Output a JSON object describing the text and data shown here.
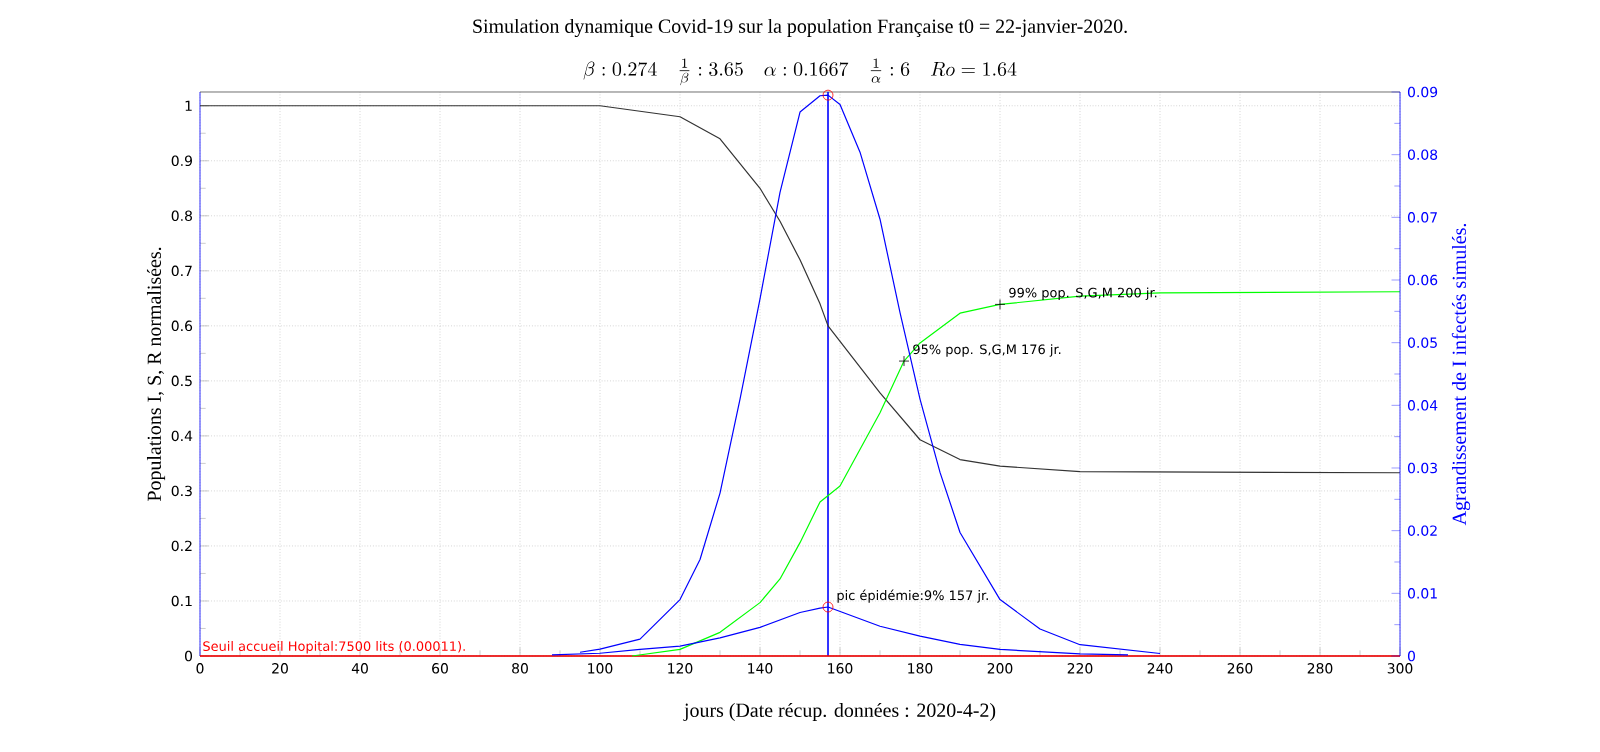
{
  "chart_data": {
    "type": "line",
    "title": "Simulation dynamique Covid-19 sur la population Française t0 = 22-janvier-2020.",
    "subtitle": "\\beta : 0.274 \\quad \\frac{1}{\\beta} : 3.65 \\quad \\alpha : 0.1667 \\quad \\frac{1}{\\alpha} : 6 \\quad Ro = 1.64",
    "xlabel": "jours     (Date récup. données : 2020-4-2)",
    "ylabel": "Populations I, S, R normalisées.",
    "y2label": "Agrandissement de I infectés simulés.",
    "xlim": [
      0,
      300
    ],
    "xticks": [
      0,
      20,
      40,
      60,
      80,
      100,
      120,
      140,
      160,
      180,
      200,
      220,
      240,
      260,
      280,
      300
    ],
    "ylim": [
      0,
      1.025
    ],
    "yticks": [
      0,
      0.1,
      0.2,
      0.3,
      0.4,
      0.5,
      0.6,
      0.7,
      0.8,
      0.9,
      1
    ],
    "y2lim": [
      0,
      0.09
    ],
    "y2ticks": [
      0,
      0.01,
      0.02,
      0.03,
      0.04,
      0.05,
      0.06,
      0.07,
      0.08,
      0.09
    ],
    "grid": true,
    "series": [
      {
        "color": "#333333",
        "x": [
          0,
          100,
          110,
          120,
          130,
          140,
          145,
          150,
          155,
          157,
          170,
          180,
          190,
          200,
          220,
          300
        ],
        "values": [
          1,
          1,
          0.99,
          0.98,
          0.94,
          0.85,
          0.79,
          0.72,
          0.64,
          0.6,
          0.478,
          0.393,
          0.357,
          0.345,
          0.335,
          0.333
        ]
      },
      {
        "color": "#00ff00",
        "x": [
          108,
          120,
          130,
          140,
          145,
          150,
          155,
          160,
          170,
          176,
          180,
          190,
          200,
          220,
          240,
          300
        ],
        "values": [
          0,
          0.012,
          0.043,
          0.097,
          0.14,
          0.206,
          0.28,
          0.309,
          0.442,
          0.536,
          0.569,
          0.623,
          0.639,
          0.654,
          0.66,
          0.662
        ]
      },
      {
        "color": "#0000ff",
        "x": [
          88,
          100,
          110,
          120,
          130,
          140,
          150,
          155,
          157,
          170,
          180,
          190,
          200,
          220,
          232
        ],
        "values": [
          0.002,
          0.005,
          0.012,
          0.018,
          0.033,
          0.052,
          0.079,
          0.087,
          0.089,
          0.054,
          0.036,
          0.021,
          0.012,
          0.004,
          0.002
        ]
      },
      {
        "color": "#0000ff",
        "axis": "y2",
        "x": [
          95,
          100,
          110,
          120,
          125,
          130,
          135,
          140,
          145,
          150,
          155,
          157,
          160,
          165,
          170,
          175,
          180,
          185,
          190,
          200,
          210,
          220,
          240
        ],
        "values": [
          0.0006,
          0.0011,
          0.0027,
          0.009,
          0.0154,
          0.026,
          0.041,
          0.057,
          0.074,
          0.0868,
          0.0894,
          0.0895,
          0.088,
          0.0804,
          0.0697,
          0.0548,
          0.041,
          0.0293,
          0.0197,
          0.009,
          0.0043,
          0.0018,
          0.0004
        ]
      },
      {
        "type": "scatter",
        "marker": "circle",
        "color": "#ff0000",
        "x": [
          157
        ],
        "values": [
          0.089
        ]
      },
      {
        "type": "scatter",
        "marker": "circle",
        "color": "#ff0000",
        "axis": "y2",
        "x": [
          157
        ],
        "values": [
          0.0895
        ]
      },
      {
        "type": "scatter",
        "marker": "cross",
        "color": "#000000",
        "x": [
          176,
          200
        ],
        "values": [
          0.536,
          0.639
        ]
      }
    ],
    "ref_lines": [
      {
        "axis": "x",
        "value": 157,
        "color": "#0000ff"
      },
      {
        "axis": "y",
        "value": 0.00011,
        "label": "Seuil accueil Hopital:7500 lits (0.00011).",
        "color": "#ff0000"
      }
    ],
    "annotations": [
      {
        "text": "pic épidémie:9% 157 jr.",
        "x": 157,
        "y": 0.089
      },
      {
        "text": "95% pop. S,G,M 176 jr.",
        "x": 176,
        "y": 0.536
      },
      {
        "text": "99% pop. S,G,M 200 jr.",
        "x": 200,
        "y": 0.639
      }
    ]
  }
}
